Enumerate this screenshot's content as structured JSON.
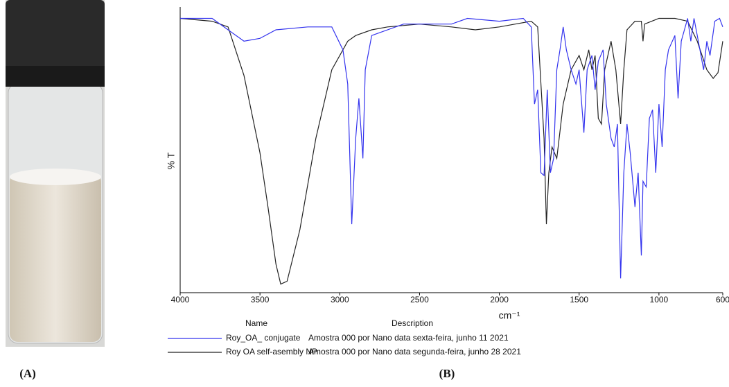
{
  "panel_labels": [
    "(A)",
    "(B)"
  ],
  "chart_data": {
    "type": "line",
    "xlabel": "cm⁻¹",
    "ylabel": "% T",
    "xlim": [
      4000,
      600
    ],
    "ylim": [
      0,
      100
    ],
    "xticks": [
      4000,
      3500,
      3000,
      2500,
      2000,
      1500,
      1000,
      600
    ],
    "legend_headers": [
      "Name",
      "Description"
    ],
    "series": [
      {
        "name": "Roy_OA_ conjugate",
        "description": "Amostra 000 por Nano data sexta-feira, junho 11 2021",
        "color": "#3333ee",
        "x": [
          4000,
          3800,
          3700,
          3600,
          3500,
          3400,
          3200,
          3050,
          2980,
          2950,
          2925,
          2900,
          2880,
          2855,
          2840,
          2800,
          2600,
          2300,
          2200,
          2000,
          1850,
          1800,
          1780,
          1760,
          1740,
          1720,
          1700,
          1680,
          1660,
          1640,
          1620,
          1600,
          1580,
          1550,
          1520,
          1500,
          1470,
          1450,
          1420,
          1400,
          1380,
          1350,
          1330,
          1300,
          1280,
          1260,
          1240,
          1220,
          1200,
          1180,
          1150,
          1130,
          1110,
          1100,
          1080,
          1060,
          1040,
          1020,
          1000,
          980,
          960,
          940,
          900,
          880,
          860,
          820,
          800,
          780,
          760,
          720,
          700,
          680,
          650,
          620,
          600
        ],
        "values": [
          96,
          96,
          92,
          88,
          89,
          92,
          93,
          93,
          85,
          73,
          24,
          54,
          68,
          47,
          78,
          90,
          94,
          94,
          96,
          95,
          96,
          93,
          66,
          71,
          42,
          41,
          71,
          42,
          47,
          78,
          85,
          93,
          85,
          78,
          73,
          78,
          56,
          78,
          83,
          71,
          81,
          85,
          66,
          54,
          51,
          59,
          5,
          42,
          59,
          49,
          30,
          42,
          13,
          39,
          37,
          61,
          64,
          42,
          66,
          51,
          78,
          85,
          90,
          68,
          88,
          96,
          88,
          96,
          90,
          78,
          88,
          83,
          95,
          96,
          93
        ]
      },
      {
        "name": "Roy OA self-asembly NP",
        "description": "Amostra 000 por Nano data segunda-feira, junho 28 2021",
        "color": "#222222",
        "x": [
          4000,
          3800,
          3700,
          3600,
          3500,
          3450,
          3400,
          3370,
          3330,
          3250,
          3150,
          3050,
          2950,
          2900,
          2800,
          2700,
          2500,
          2300,
          2150,
          2000,
          1900,
          1800,
          1760,
          1720,
          1705,
          1690,
          1670,
          1640,
          1600,
          1550,
          1500,
          1470,
          1440,
          1420,
          1400,
          1380,
          1360,
          1340,
          1300,
          1270,
          1240,
          1220,
          1200,
          1150,
          1110,
          1100,
          1090,
          1000,
          900,
          820,
          760,
          700,
          660,
          630,
          600
        ],
        "values": [
          96,
          95,
          93,
          76,
          49,
          30,
          10,
          3,
          4,
          22,
          54,
          78,
          88,
          90,
          92,
          93,
          94,
          93,
          92,
          93,
          94,
          95,
          93,
          54,
          24,
          42,
          51,
          47,
          66,
          78,
          83,
          78,
          85,
          78,
          83,
          61,
          59,
          78,
          88,
          78,
          59,
          78,
          92,
          95,
          95,
          88,
          94,
          96,
          96,
          95,
          88,
          78,
          75,
          77,
          88
        ]
      }
    ]
  }
}
